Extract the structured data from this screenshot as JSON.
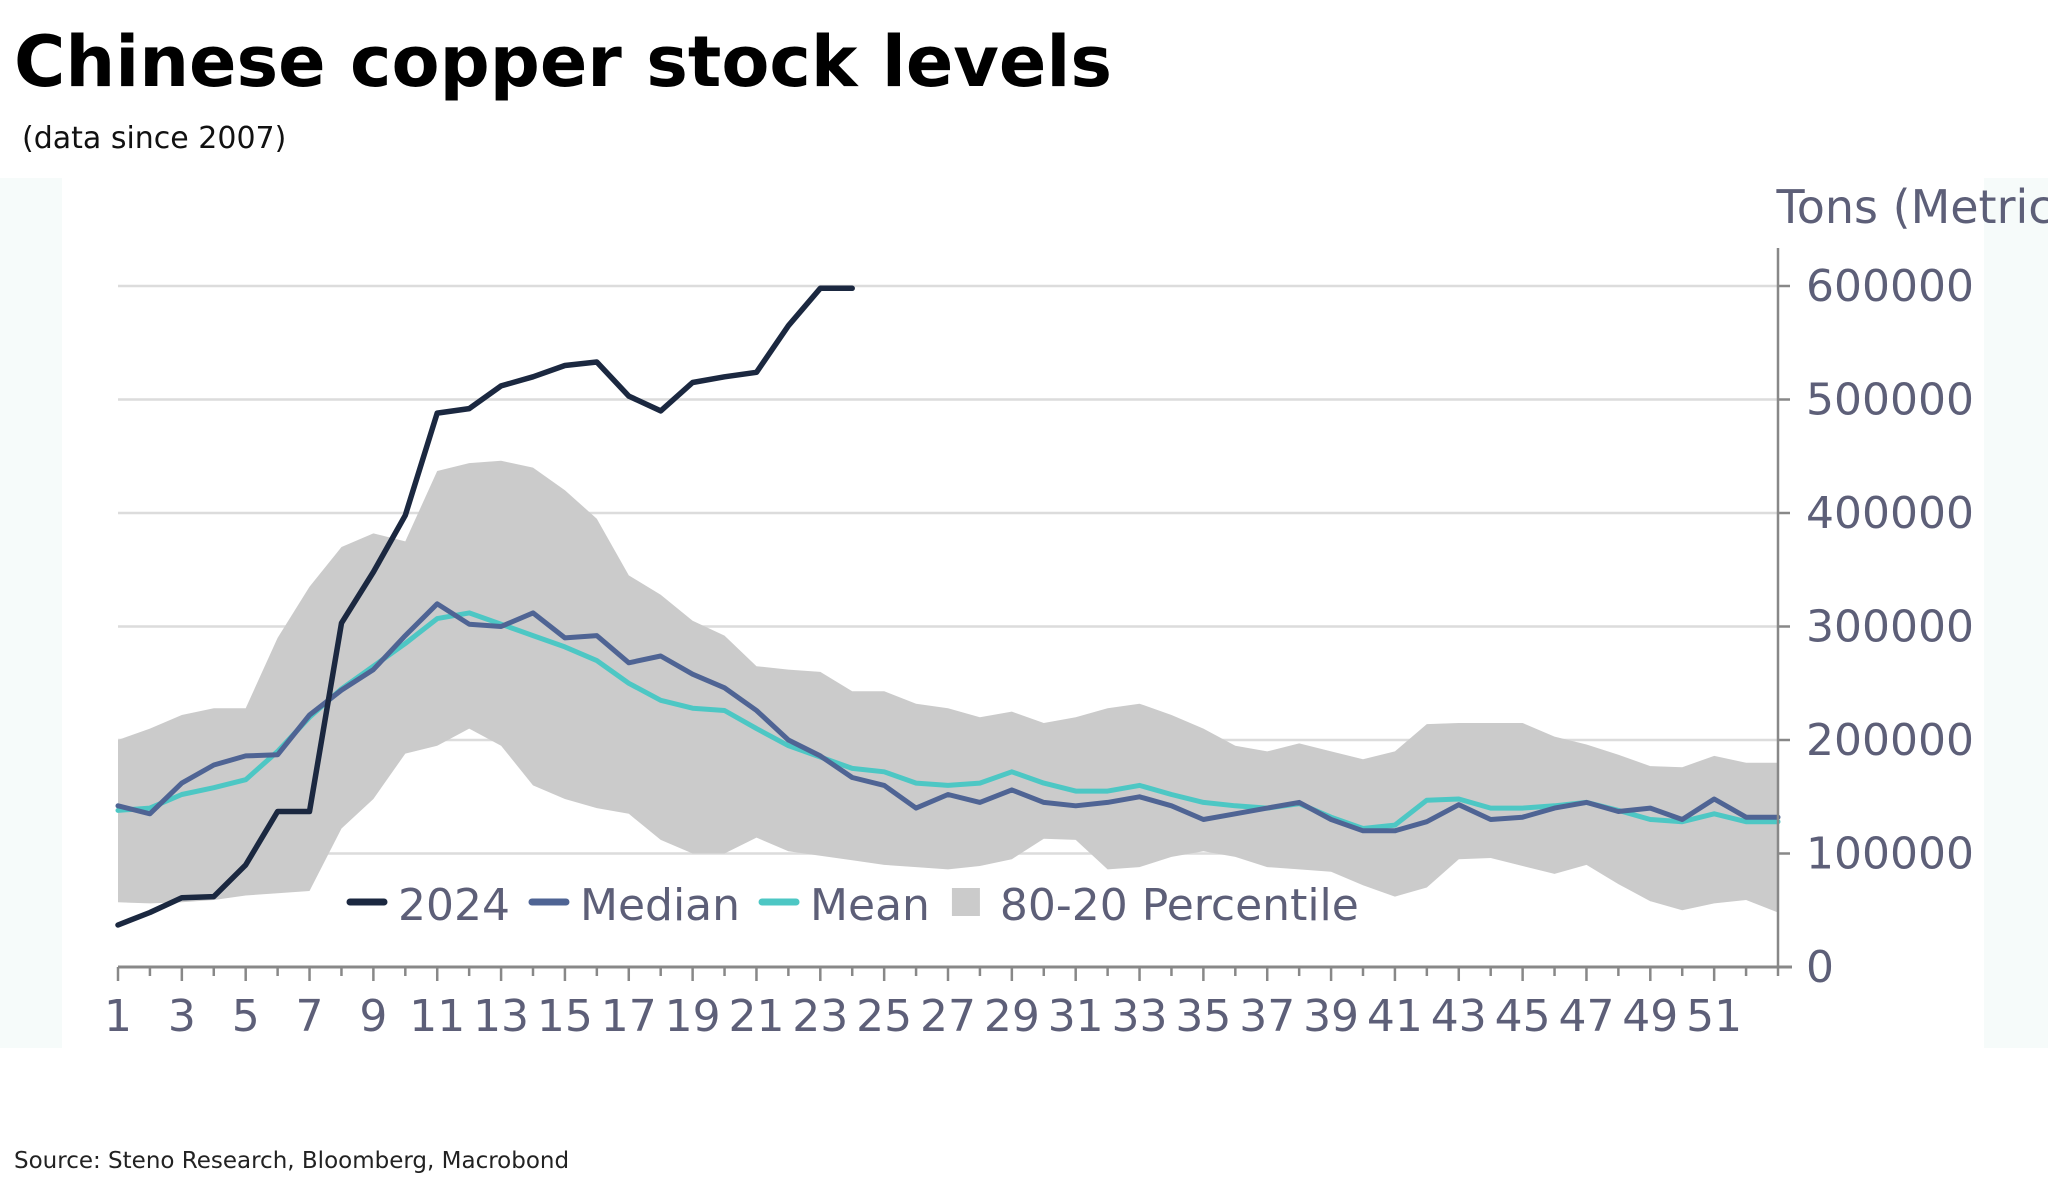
{
  "header": {
    "title": "Chinese copper stock levels",
    "subtitle": "(data since 2007)"
  },
  "footer": {
    "source": "Source: Steno Research, Bloomberg, Macrobond"
  },
  "chart_data": {
    "type": "line",
    "ylabel": "Tons (Metric)",
    "xlabel": "",
    "xlim": [
      1,
      53
    ],
    "ylim": [
      0,
      600000
    ],
    "yticks": [
      0,
      100000,
      200000,
      300000,
      400000,
      500000,
      600000
    ],
    "xticks": [
      1,
      3,
      5,
      7,
      9,
      11,
      13,
      15,
      17,
      19,
      21,
      23,
      25,
      27,
      29,
      31,
      33,
      35,
      37,
      39,
      41,
      43,
      45,
      47,
      49,
      51
    ],
    "y_axis_position": "right",
    "grid": "horizontal",
    "legend_position": "bottom-left",
    "colors": {
      "2024": "#1b2840",
      "median": "#4f6494",
      "mean": "#4dc7c4",
      "band": "#cbcbcb",
      "grid": "#dcdcdc",
      "axis": "#888888",
      "tick_text": "#5d5f78"
    },
    "band": {
      "name": "80-20 Percentile",
      "x": [
        1,
        2,
        3,
        4,
        5,
        6,
        7,
        8,
        9,
        10,
        11,
        12,
        13,
        14,
        15,
        16,
        17,
        18,
        19,
        20,
        21,
        22,
        23,
        24,
        25,
        26,
        27,
        28,
        29,
        30,
        31,
        32,
        33,
        34,
        35,
        36,
        37,
        38,
        39,
        40,
        41,
        42,
        43,
        44,
        45,
        46,
        47,
        48,
        49,
        50,
        51,
        52,
        53
      ],
      "upper": [
        200000,
        210000,
        222000,
        228000,
        228000,
        290000,
        335000,
        370000,
        382000,
        375000,
        437000,
        444000,
        446000,
        440000,
        420000,
        395000,
        345000,
        328000,
        305000,
        292000,
        265000,
        262000,
        260000,
        243000,
        243000,
        232000,
        228000,
        220000,
        225000,
        215000,
        220000,
        228000,
        232000,
        222000,
        210000,
        195000,
        190000,
        197000,
        190000,
        183000,
        190000,
        214000,
        215000,
        215000,
        215000,
        203000,
        196000,
        187000,
        177000,
        176000,
        186000,
        180000,
        180000
      ],
      "lower": [
        57000,
        56000,
        57000,
        59000,
        63000,
        65000,
        67000,
        122000,
        148000,
        188000,
        195000,
        210000,
        195000,
        160000,
        148000,
        140000,
        135000,
        112000,
        100000,
        100000,
        114000,
        102000,
        98000,
        94000,
        90000,
        88000,
        86000,
        89000,
        95000,
        113000,
        112000,
        86000,
        88000,
        97000,
        102000,
        97000,
        88000,
        86000,
        84000,
        72000,
        62000,
        70000,
        95000,
        96000,
        89000,
        82000,
        90000,
        73000,
        58000,
        50000,
        56000,
        59000,
        48000
      ]
    },
    "series": [
      {
        "name": "2024",
        "x": [
          1,
          2,
          3,
          4,
          5,
          6,
          7,
          8,
          9,
          10,
          11,
          12,
          13,
          14,
          15,
          16,
          17,
          18,
          19,
          20,
          21,
          22,
          23,
          24
        ],
        "values": [
          37000,
          48000,
          61000,
          62000,
          90000,
          137000,
          137000,
          303000,
          348000,
          398000,
          488000,
          492000,
          512000,
          520000,
          530000,
          533000,
          503000,
          490000,
          515000,
          520000,
          524000,
          565000,
          598000,
          598000
        ]
      },
      {
        "name": "Median",
        "x": [
          1,
          2,
          3,
          4,
          5,
          6,
          7,
          8,
          9,
          10,
          11,
          12,
          13,
          14,
          15,
          16,
          17,
          18,
          19,
          20,
          21,
          22,
          23,
          24,
          25,
          26,
          27,
          28,
          29,
          30,
          31,
          32,
          33,
          34,
          35,
          36,
          37,
          38,
          39,
          40,
          41,
          42,
          43,
          44,
          45,
          46,
          47,
          48,
          49,
          50,
          51,
          52,
          53
        ],
        "values": [
          142000,
          135000,
          162000,
          178000,
          186000,
          187000,
          222000,
          244000,
          262000,
          292000,
          320000,
          302000,
          300000,
          312000,
          290000,
          292000,
          268000,
          274000,
          258000,
          246000,
          226000,
          200000,
          186000,
          167000,
          160000,
          140000,
          152000,
          145000,
          156000,
          145000,
          142000,
          145000,
          150000,
          142000,
          130000,
          135000,
          140000,
          145000,
          130000,
          120000,
          120000,
          128000,
          143000,
          130000,
          132000,
          140000,
          145000,
          137000,
          140000,
          130000,
          148000,
          132000,
          132000
        ]
      },
      {
        "name": "Mean",
        "x": [
          1,
          2,
          3,
          4,
          5,
          6,
          7,
          8,
          9,
          10,
          11,
          12,
          13,
          14,
          15,
          16,
          17,
          18,
          19,
          20,
          21,
          22,
          23,
          24,
          25,
          26,
          27,
          28,
          29,
          30,
          31,
          32,
          33,
          34,
          35,
          36,
          37,
          38,
          39,
          40,
          41,
          42,
          43,
          44,
          45,
          46,
          47,
          48,
          49,
          50,
          51,
          52,
          53
        ],
        "values": [
          138000,
          140000,
          152000,
          158000,
          165000,
          190000,
          220000,
          245000,
          265000,
          285000,
          307000,
          312000,
          302000,
          292000,
          282000,
          270000,
          250000,
          235000,
          228000,
          226000,
          210000,
          195000,
          185000,
          175000,
          172000,
          162000,
          160000,
          162000,
          172000,
          162000,
          155000,
          155000,
          160000,
          152000,
          145000,
          142000,
          140000,
          144000,
          132000,
          122000,
          125000,
          147000,
          148000,
          140000,
          140000,
          142000,
          145000,
          138000,
          130000,
          128000,
          135000,
          128000,
          128000
        ]
      }
    ],
    "legend": [
      "2024",
      "Median",
      "Mean",
      "80-20 Percentile"
    ]
  }
}
